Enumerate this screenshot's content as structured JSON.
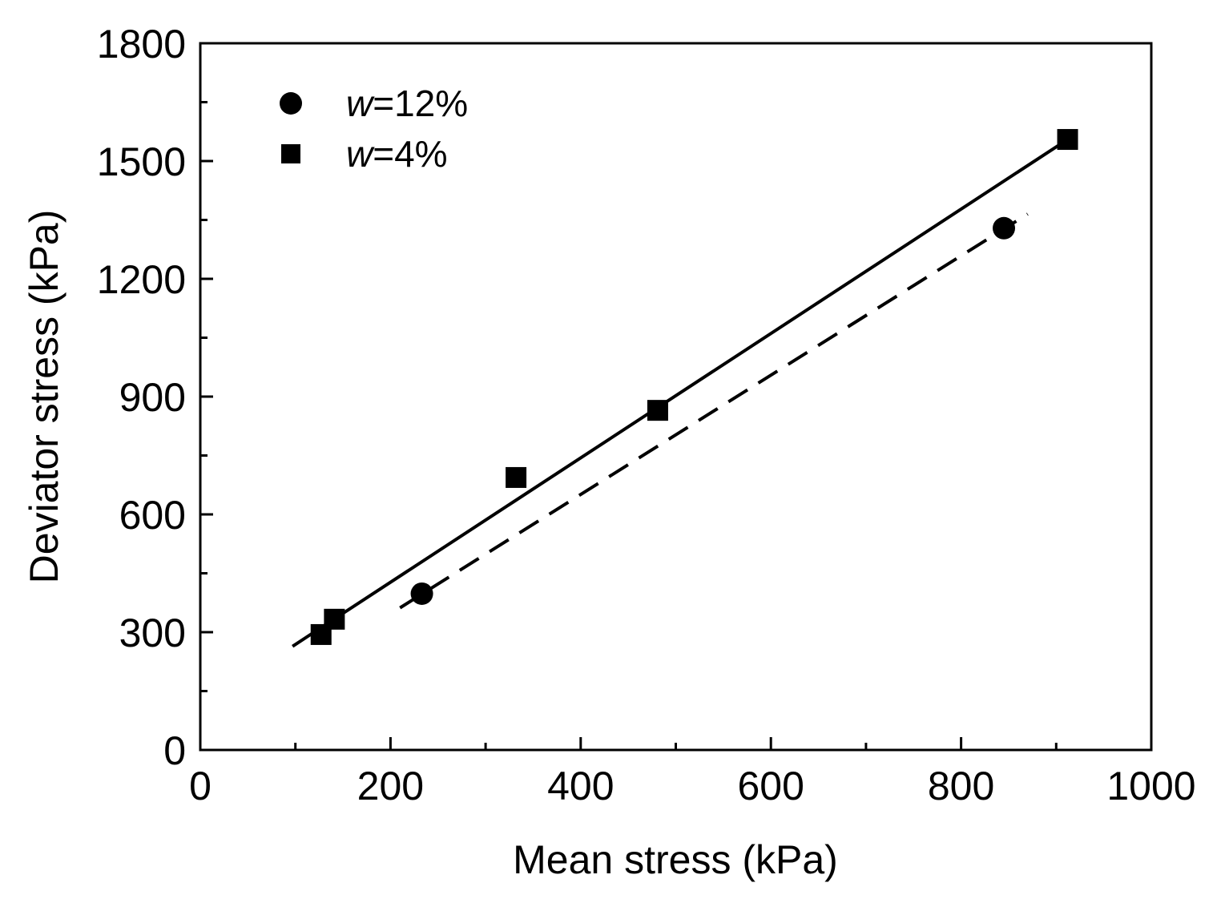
{
  "chart_data": {
    "type": "scatter",
    "title": "",
    "xlabel": "Mean stress (kPa)",
    "ylabel": "Deviator stress (kPa)",
    "xlim": [
      0,
      1000
    ],
    "ylim": [
      0,
      1800
    ],
    "x_ticks": [
      0,
      200,
      400,
      600,
      800,
      1000
    ],
    "x_tick_labels": [
      "0",
      "200",
      "400",
      "600",
      "800",
      "1000"
    ],
    "x_minor_ticks": [
      100,
      300,
      500,
      700,
      900
    ],
    "y_ticks": [
      0,
      300,
      600,
      900,
      1200,
      1500,
      1800
    ],
    "y_tick_labels": [
      "0",
      "300",
      "600",
      "900",
      "1200",
      "1500",
      "1800"
    ],
    "y_minor_ticks": [
      150,
      450,
      750,
      1050,
      1350,
      1650
    ],
    "grid": false,
    "legend_position": "top-left",
    "series": [
      {
        "name": "w=12%",
        "legend_var": "w",
        "legend_rest": "=12%",
        "marker": "circle",
        "color": "#000000",
        "points": [
          [
            233,
            398
          ],
          [
            845,
            1329
          ]
        ],
        "fit_line": {
          "style": "dashed",
          "from": [
            210,
            362
          ],
          "to": [
            870,
            1365
          ]
        }
      },
      {
        "name": "w=4%",
        "legend_var": "w",
        "legend_rest": "=4%",
        "marker": "square",
        "color": "#000000",
        "points": [
          [
            127,
            294
          ],
          [
            141,
            333
          ],
          [
            332,
            694
          ],
          [
            481,
            865
          ],
          [
            912,
            1555
          ]
        ],
        "fit_line": {
          "style": "solid",
          "from": [
            97,
            264
          ],
          "to": [
            912,
            1555
          ]
        }
      }
    ]
  }
}
